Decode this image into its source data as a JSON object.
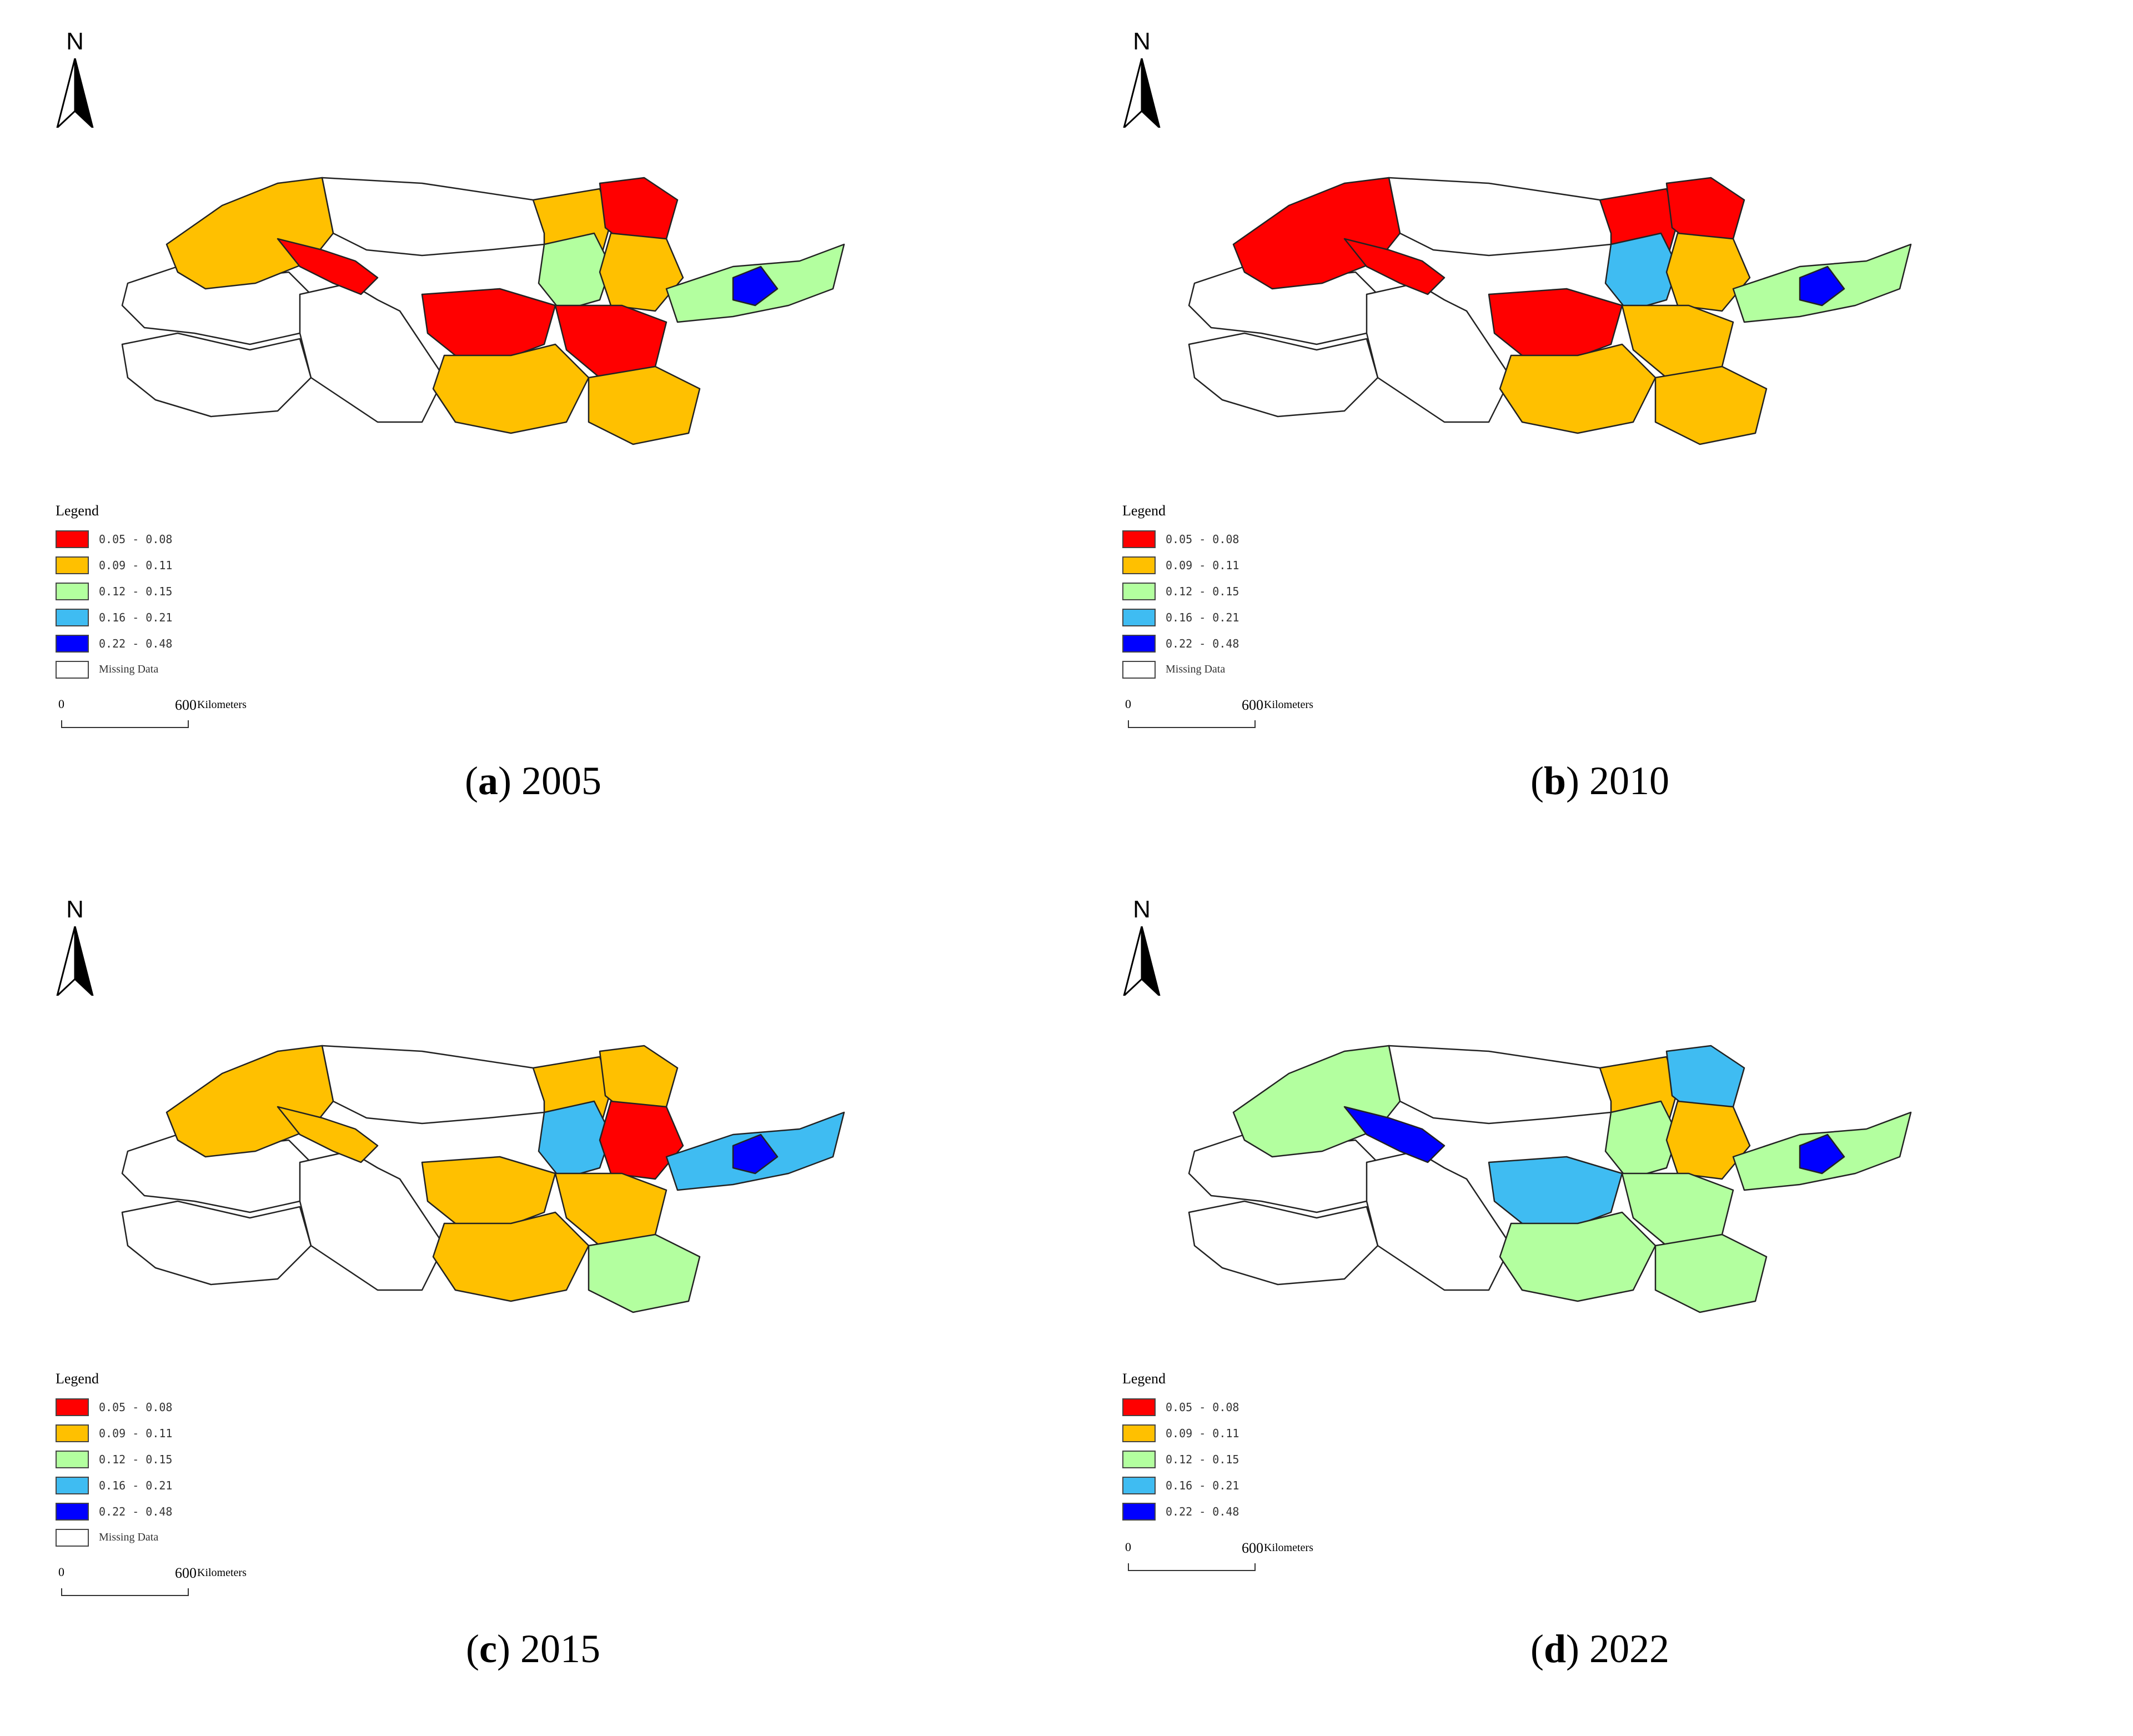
{
  "north_label": "N",
  "legend": {
    "title": "Legend",
    "classes": [
      {
        "label": "0.05 - 0.08",
        "color": "#ff0000"
      },
      {
        "label": "0.09 - 0.11",
        "color": "#ffc000"
      },
      {
        "label": "0.12 - 0.15",
        "color": "#b3ff9f"
      },
      {
        "label": "0.16 - 0.21",
        "color": "#3fbcf2"
      },
      {
        "label": "0.22 - 0.48",
        "color": "#0000ff"
      }
    ],
    "missing_label": "Missing Data",
    "missing_color": "#ffffff"
  },
  "scale": {
    "zero": "0",
    "distance": "600",
    "unit": "Kilometers"
  },
  "panels": [
    {
      "letter": "a",
      "year": "2005",
      "show_missing": true,
      "region_colors": {
        "r1": "#ffc000",
        "r2": "#ff0000",
        "r3": "#ffc000",
        "r4": "#b3ff9f",
        "r5": "#ff0000",
        "r6": "#ffc000",
        "r7": "#ff0000",
        "r8": "#ffc000",
        "r9": "#ff0000",
        "r10": "#ffc000",
        "r11": "#b3ff9f",
        "r12": "#0000ff"
      }
    },
    {
      "letter": "b",
      "year": "2010",
      "show_missing": true,
      "region_colors": {
        "r1": "#ff0000",
        "r2": "#ff0000",
        "r3": "#ff0000",
        "r4": "#3fbcf2",
        "r5": "#ff0000",
        "r6": "#ffc000",
        "r7": "#ff0000",
        "r8": "#ffc000",
        "r9": "#ffc000",
        "r10": "#ffc000",
        "r11": "#b3ff9f",
        "r12": "#0000ff"
      }
    },
    {
      "letter": "c",
      "year": "2015",
      "show_missing": true,
      "region_colors": {
        "r1": "#ffc000",
        "r2": "#ffc000",
        "r3": "#ffc000",
        "r4": "#3fbcf2",
        "r5": "#ffc000",
        "r6": "#ff0000",
        "r7": "#ffc000",
        "r8": "#ffc000",
        "r9": "#ffc000",
        "r10": "#b3ff9f",
        "r11": "#3fbcf2",
        "r12": "#0000ff"
      }
    },
    {
      "letter": "d",
      "year": "2022",
      "show_missing": false,
      "region_colors": {
        "r1": "#b3ff9f",
        "r2": "#0000ff",
        "r3": "#ffc000",
        "r4": "#b3ff9f",
        "r5": "#3fbcf2",
        "r6": "#ffc000",
        "r7": "#3fbcf2",
        "r8": "#b3ff9f",
        "r9": "#b3ff9f",
        "r10": "#b3ff9f",
        "r11": "#b3ff9f",
        "r12": "#0000ff"
      }
    }
  ]
}
